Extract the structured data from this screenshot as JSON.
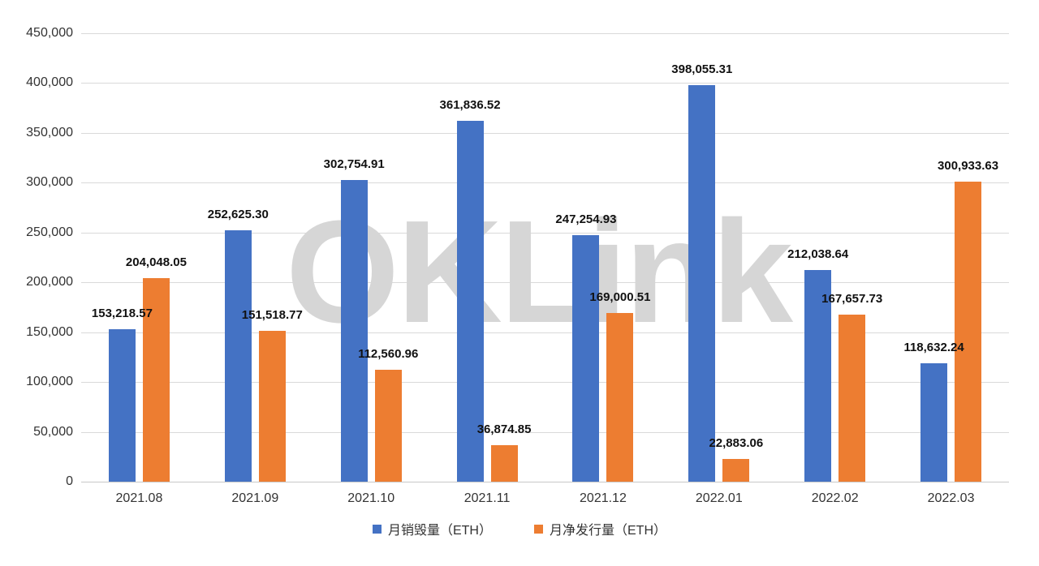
{
  "watermark": "OKLink",
  "chart_data": {
    "type": "bar",
    "title": "",
    "xlabel": "",
    "ylabel": "",
    "categories": [
      "2021.08",
      "2021.09",
      "2021.10",
      "2021.11",
      "2021.12",
      "2022.01",
      "2022.02",
      "2022.03"
    ],
    "series": [
      {
        "name": "月销毁量（ETH）",
        "color": "#4472C4",
        "values": [
          153218.57,
          252625.3,
          302754.91,
          361836.52,
          247254.93,
          398055.31,
          212038.64,
          118632.24
        ]
      },
      {
        "name": "月净发行量（ETH）",
        "color": "#ED7D31",
        "values": [
          204048.05,
          151518.77,
          112560.96,
          36874.85,
          169000.51,
          22883.06,
          167657.73,
          300933.63
        ]
      }
    ],
    "ylim": [
      0,
      450000
    ],
    "ytick_step": 50000,
    "yticks": [
      "0",
      "50,000",
      "100,000",
      "150,000",
      "200,000",
      "250,000",
      "300,000",
      "350,000",
      "400,000",
      "450,000"
    ],
    "grid": "horizontal",
    "legend_position": "bottom",
    "value_labels_decimals": 2,
    "colors": {
      "background": "#ffffff",
      "gridline": "#d9d9d9",
      "axis_text": "#333333",
      "value_label_text": "#111111",
      "watermark": "#d6d6d6"
    }
  }
}
